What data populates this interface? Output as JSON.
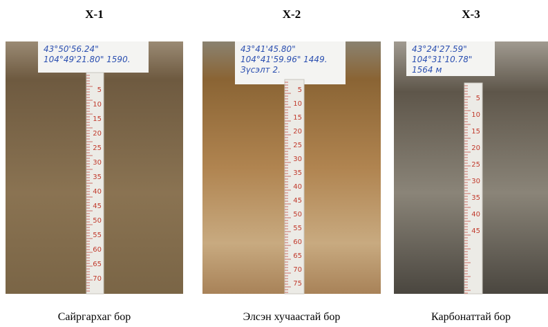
{
  "panels": [
    {
      "title": "X-1",
      "caption": "Сайргархаг бор",
      "sign": [
        "43°50'56.24\"",
        "104°49'21.80\" 1590."
      ],
      "tape": [
        5,
        10,
        15,
        20,
        25,
        30,
        35,
        40,
        45,
        50,
        55,
        60,
        65,
        70
      ]
    },
    {
      "title": "X-2",
      "caption": "Элсэн хучаастай бор",
      "sign": [
        "43°41'45.80\"",
        "104°41'59.96\" 1449.",
        "Зүсэлт 2."
      ],
      "tape": [
        5,
        10,
        15,
        20,
        25,
        30,
        35,
        40,
        45,
        50,
        55,
        60,
        65,
        70,
        75
      ]
    },
    {
      "title": "X-3",
      "caption": "Карбонаттай бор",
      "sign": [
        "43°24'27.59\"",
        "104°31'10.78\"",
        "1564 м"
      ],
      "tape": [
        5,
        10,
        15,
        20,
        25,
        30,
        35,
        40,
        45
      ]
    }
  ]
}
